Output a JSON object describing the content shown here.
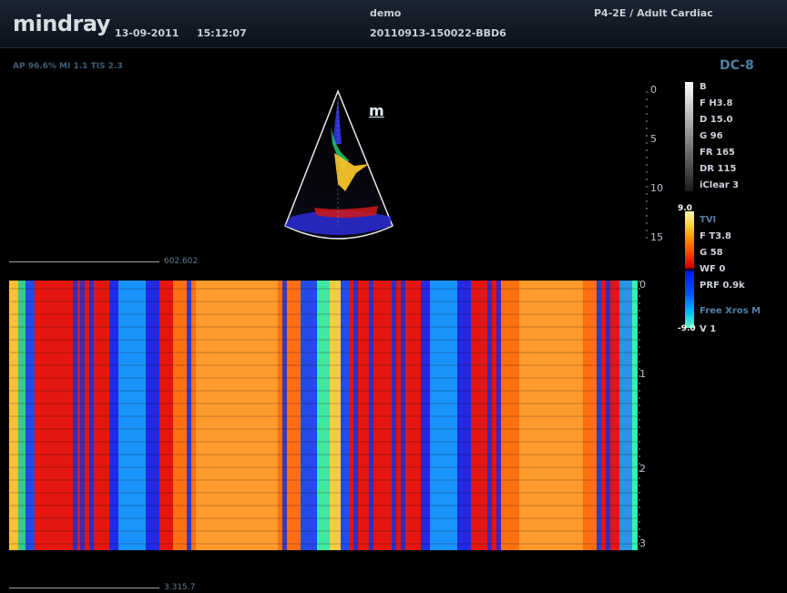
{
  "header": {
    "brand": "mindray",
    "date": "13-09-2011",
    "time": "15:12:07",
    "patient_name": "demo",
    "patient_id": "20110913-150022-BBD6",
    "probe_preset": "P4-2E / Adult Cardiac"
  },
  "acoustic_output": "AP 96.6%  MI 1.1  TIS 2.3",
  "image_mode": "DC-8",
  "m_marker": "m",
  "b_params": [
    "B",
    "F H3.8",
    "D 15.0",
    "G 96",
    "FR 165",
    "DR 115",
    "iClear 3"
  ],
  "color_params": [
    "TVI",
    "F T3.8",
    "G 58",
    "WF 0",
    "PRF 0.9k",
    "Free Xros M",
    "V 1"
  ],
  "color_scale": {
    "top": "9.0",
    "bottom": "-9.0"
  },
  "depth_ticks": [
    "0",
    "5",
    "10",
    "15"
  ],
  "mmode_ticks": [
    "0",
    "1",
    "2",
    "3"
  ],
  "timeline_top_label": "602.602",
  "timeline_bottom_label": "3.315.7",
  "colors": {
    "brand": "#d9dde2",
    "mode_accent": "#4f7fa8",
    "header_bg": "#1b2433"
  }
}
